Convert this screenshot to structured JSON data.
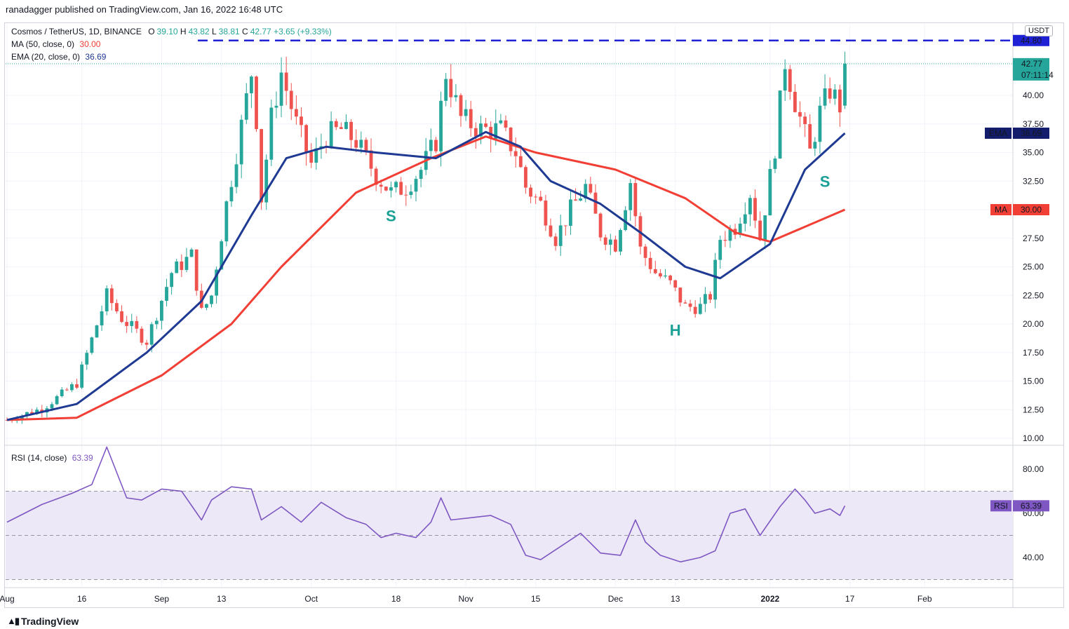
{
  "attribution": "ranadagger published on TradingView.com, Jan 16, 2022 16:48 UTC",
  "footer": {
    "logo_text": "TradingView",
    "logo_icon": "tradingview-logo-icon"
  },
  "header": {
    "symbol": "Cosmos / TetherUS, 1D, BINANCE",
    "ohlc": {
      "o_label": "O",
      "o": "39.10",
      "h_label": "H",
      "h": "43.82",
      "l_label": "L",
      "l": "38.81",
      "c_label": "C",
      "c": "42.77",
      "change": "+3.65 (+9.33%)"
    },
    "ma_label": "MA (50, close, 0)",
    "ma_value": "30.00",
    "ema_label": "EMA (20, close, 0)",
    "ema_value": "36.69",
    "rsi_label": "RSI (14, close)",
    "rsi_value": "63.39"
  },
  "price_axis": {
    "currency": "USDT",
    "ticks": [
      "44.80",
      "40.00",
      "37.50",
      "35.00",
      "32.50",
      "30.00",
      "27.50",
      "25.00",
      "22.50",
      "20.00",
      "17.50",
      "15.00",
      "12.50",
      "10.00"
    ],
    "resistance_tag": "44.80",
    "last_price": "42.77",
    "countdown": "07:11:14",
    "ema_tag": {
      "label": "EMA",
      "value": "36.69"
    },
    "ma_tag": {
      "label": "MA",
      "value": "30.00"
    }
  },
  "rsi_axis": {
    "ticks": [
      "80.00",
      "60.00",
      "40.00"
    ],
    "tag": {
      "label": "RSI",
      "value": "63.39"
    }
  },
  "time_axis": [
    "Aug",
    "16",
    "Sep",
    "13",
    "Oct",
    "18",
    "Nov",
    "15",
    "Dec",
    "13",
    "2022",
    "17",
    "Feb"
  ],
  "annotations": [
    "S",
    "H",
    "S"
  ],
  "colors": {
    "up": "#26a69a",
    "down": "#ef5350",
    "ema": "#1f3a93",
    "ma": "#f23f35",
    "resistance": "#1e22d4",
    "rsi_line": "#7e57c2",
    "rsi_band": "#ece8f7",
    "annotation": "#1aa095",
    "tag_dark": "#131d6b",
    "tag_price": "#26a69a"
  },
  "chart_data": {
    "type": "candlestick",
    "symbol": "ATOM/USDT",
    "interval": "1D",
    "x": [
      "2021-08-01",
      "2022-01-16"
    ],
    "ylim": [
      10,
      47
    ],
    "resistance_line": 44.8,
    "price_path": [
      [
        "2021-08-01",
        11.6
      ],
      [
        "2021-08-08",
        12.6
      ],
      [
        "2021-08-15",
        14.8
      ],
      [
        "2021-08-21",
        22.5
      ],
      [
        "2021-08-24",
        20.5
      ],
      [
        "2021-08-29",
        18.5
      ],
      [
        "2021-09-03",
        24.5
      ],
      [
        "2021-09-07",
        26.0
      ],
      [
        "2021-09-09",
        21.0
      ],
      [
        "2021-09-11",
        22.5
      ],
      [
        "2021-09-14",
        30.5
      ],
      [
        "2021-09-16",
        35.0
      ],
      [
        "2021-09-19",
        42.0
      ],
      [
        "2021-09-20",
        38.0
      ],
      [
        "2021-09-21",
        31.0
      ],
      [
        "2021-09-23",
        38.0
      ],
      [
        "2021-09-25",
        42.0
      ],
      [
        "2021-09-28",
        37.5
      ],
      [
        "2021-10-01",
        34.0
      ],
      [
        "2021-10-04",
        36.5
      ],
      [
        "2021-10-07",
        37.0
      ],
      [
        "2021-10-10",
        36.0
      ],
      [
        "2021-10-14",
        33.0
      ],
      [
        "2021-10-17",
        31.5
      ],
      [
        "2021-10-20",
        32.0
      ],
      [
        "2021-10-23",
        33.5
      ],
      [
        "2021-10-26",
        36.0
      ],
      [
        "2021-10-28",
        42.0
      ],
      [
        "2021-10-31",
        38.0
      ],
      [
        "2021-11-04",
        37.0
      ],
      [
        "2021-11-08",
        37.0
      ],
      [
        "2021-11-11",
        35.0
      ],
      [
        "2021-11-13",
        32.0
      ],
      [
        "2021-11-16",
        30.5
      ],
      [
        "2021-11-19",
        27.5
      ],
      [
        "2021-11-22",
        30.0
      ],
      [
        "2021-11-25",
        32.0
      ],
      [
        "2021-11-28",
        28.0
      ],
      [
        "2021-12-01",
        27.0
      ],
      [
        "2021-12-04",
        32.5
      ],
      [
        "2021-12-06",
        26.5
      ],
      [
        "2021-12-09",
        24.5
      ],
      [
        "2021-12-12",
        23.5
      ],
      [
        "2021-12-15",
        21.5
      ],
      [
        "2021-12-18",
        21.5
      ],
      [
        "2021-12-20",
        22.5
      ],
      [
        "2021-12-22",
        27.5
      ],
      [
        "2021-12-25",
        28.5
      ],
      [
        "2021-12-28",
        31.5
      ],
      [
        "2021-12-30",
        27.5
      ],
      [
        "2022-01-02",
        35.5
      ],
      [
        "2022-01-04",
        43.0
      ],
      [
        "2022-01-06",
        39.5
      ],
      [
        "2022-01-09",
        35.0
      ],
      [
        "2022-01-11",
        38.5
      ],
      [
        "2022-01-13",
        40.5
      ],
      [
        "2022-01-15",
        39.1
      ],
      [
        "2022-01-16",
        42.77
      ]
    ],
    "ema20_path": [
      [
        "2021-08-01",
        11.6
      ],
      [
        "2021-08-15",
        13.0
      ],
      [
        "2021-08-29",
        17.5
      ],
      [
        "2021-09-09",
        22.0
      ],
      [
        "2021-09-19",
        29.5
      ],
      [
        "2021-09-26",
        34.5
      ],
      [
        "2021-10-04",
        35.5
      ],
      [
        "2021-10-14",
        35.0
      ],
      [
        "2021-10-26",
        34.5
      ],
      [
        "2021-11-05",
        36.8
      ],
      [
        "2021-11-12",
        35.5
      ],
      [
        "2021-11-18",
        32.5
      ],
      [
        "2021-11-28",
        30.5
      ],
      [
        "2021-12-06",
        28.0
      ],
      [
        "2021-12-15",
        25.0
      ],
      [
        "2021-12-22",
        24.0
      ],
      [
        "2022-01-01",
        27.0
      ],
      [
        "2022-01-08",
        33.5
      ],
      [
        "2022-01-16",
        36.69
      ]
    ],
    "ma50_path": [
      [
        "2021-08-01",
        11.6
      ],
      [
        "2021-08-15",
        11.8
      ],
      [
        "2021-09-01",
        15.5
      ],
      [
        "2021-09-15",
        20.0
      ],
      [
        "2021-09-25",
        25.0
      ],
      [
        "2021-10-10",
        31.5
      ],
      [
        "2021-10-25",
        34.5
      ],
      [
        "2021-11-05",
        36.4
      ],
      [
        "2021-11-15",
        35.0
      ],
      [
        "2021-12-01",
        33.5
      ],
      [
        "2021-12-15",
        31.0
      ],
      [
        "2021-12-25",
        28.0
      ],
      [
        "2022-01-01",
        27.2
      ],
      [
        "2022-01-08",
        28.5
      ],
      [
        "2022-01-16",
        30.0
      ]
    ],
    "rsi": {
      "ylim": [
        25,
        95
      ],
      "overbought": 70,
      "oversold": 30,
      "path": [
        [
          "2021-08-01",
          56
        ],
        [
          "2021-08-08",
          64
        ],
        [
          "2021-08-14",
          69
        ],
        [
          "2021-08-18",
          73
        ],
        [
          "2021-08-21",
          90
        ],
        [
          "2021-08-25",
          67
        ],
        [
          "2021-08-28",
          66
        ],
        [
          "2021-09-01",
          71
        ],
        [
          "2021-09-05",
          70
        ],
        [
          "2021-09-09",
          57
        ],
        [
          "2021-09-11",
          66
        ],
        [
          "2021-09-15",
          72
        ],
        [
          "2021-09-19",
          71
        ],
        [
          "2021-09-21",
          57
        ],
        [
          "2021-09-25",
          63
        ],
        [
          "2021-09-29",
          56
        ],
        [
          "2021-10-03",
          65
        ],
        [
          "2021-10-08",
          58
        ],
        [
          "2021-10-12",
          55
        ],
        [
          "2021-10-15",
          49
        ],
        [
          "2021-10-18",
          51
        ],
        [
          "2021-10-22",
          49
        ],
        [
          "2021-10-25",
          56
        ],
        [
          "2021-10-27",
          67
        ],
        [
          "2021-10-29",
          57
        ],
        [
          "2021-11-02",
          58
        ],
        [
          "2021-11-06",
          59
        ],
        [
          "2021-11-10",
          55
        ],
        [
          "2021-11-13",
          41
        ],
        [
          "2021-11-16",
          39
        ],
        [
          "2021-11-20",
          45
        ],
        [
          "2021-11-24",
          51
        ],
        [
          "2021-11-28",
          42
        ],
        [
          "2021-12-02",
          41
        ],
        [
          "2021-12-05",
          57
        ],
        [
          "2021-12-07",
          47
        ],
        [
          "2021-12-10",
          41
        ],
        [
          "2021-12-14",
          38
        ],
        [
          "2021-12-18",
          40
        ],
        [
          "2021-12-21",
          43
        ],
        [
          "2021-12-24",
          60
        ],
        [
          "2021-12-27",
          62
        ],
        [
          "2021-12-30",
          50
        ],
        [
          "2022-01-03",
          63
        ],
        [
          "2022-01-06",
          71
        ],
        [
          "2022-01-08",
          66
        ],
        [
          "2022-01-10",
          60
        ],
        [
          "2022-01-13",
          62
        ],
        [
          "2022-01-15",
          59
        ],
        [
          "2022-01-16",
          63.39
        ]
      ]
    },
    "last_close": 42.77,
    "annotations": [
      {
        "text": "S",
        "date": "2021-10-17",
        "price": 29.0
      },
      {
        "text": "H",
        "date": "2021-12-13",
        "price": 19.0
      },
      {
        "text": "S",
        "date": "2022-01-12",
        "price": 32.0
      }
    ]
  }
}
